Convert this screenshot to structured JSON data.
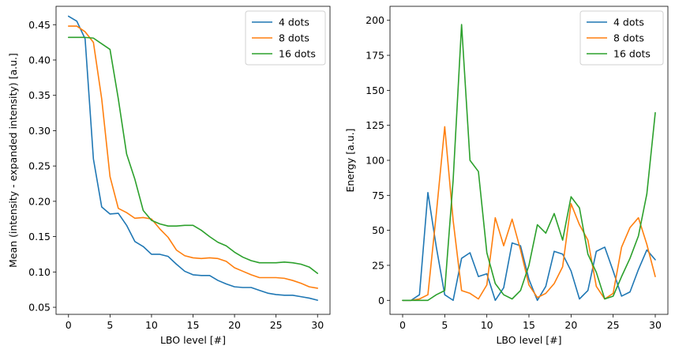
{
  "chart_data": [
    {
      "type": "line",
      "title": "",
      "xlabel": "LBO level [#]",
      "ylabel": "Mean (intensity - expanded intensity) [a.u.]",
      "xlim": [
        -1.5,
        31.5
      ],
      "ylim": [
        0.04,
        0.476
      ],
      "xticks": [
        0,
        5,
        10,
        15,
        20,
        25,
        30
      ],
      "xtick_labels": [
        "0",
        "5",
        "10",
        "15",
        "20",
        "25",
        "30"
      ],
      "yticks": [
        0.05,
        0.1,
        0.15,
        0.2,
        0.25,
        0.3,
        0.35,
        0.4,
        0.45
      ],
      "ytick_labels": [
        "0.05",
        "0.10",
        "0.15",
        "0.20",
        "0.25",
        "0.30",
        "0.35",
        "0.40",
        "0.45"
      ],
      "legend_position": "top-right",
      "x": [
        0,
        1,
        2,
        3,
        4,
        5,
        6,
        7,
        8,
        9,
        10,
        11,
        12,
        13,
        14,
        15,
        16,
        17,
        18,
        19,
        20,
        21,
        22,
        23,
        24,
        25,
        26,
        27,
        28,
        29,
        30
      ],
      "series": [
        {
          "name": "4 dots",
          "color": "#1f77b4",
          "values": [
            0.462,
            0.455,
            0.43,
            0.26,
            0.192,
            0.182,
            0.183,
            0.166,
            0.143,
            0.136,
            0.125,
            0.125,
            0.122,
            0.111,
            0.101,
            0.096,
            0.095,
            0.095,
            0.088,
            0.083,
            0.079,
            0.078,
            0.078,
            0.074,
            0.07,
            0.068,
            0.067,
            0.067,
            0.065,
            0.063,
            0.06
          ]
        },
        {
          "name": "8 dots",
          "color": "#ff7f0e",
          "values": [
            0.448,
            0.448,
            0.44,
            0.425,
            0.345,
            0.235,
            0.19,
            0.184,
            0.176,
            0.177,
            0.175,
            0.161,
            0.149,
            0.131,
            0.123,
            0.12,
            0.119,
            0.12,
            0.119,
            0.115,
            0.106,
            0.101,
            0.096,
            0.092,
            0.092,
            0.092,
            0.091,
            0.088,
            0.084,
            0.079,
            0.077
          ]
        },
        {
          "name": "16 dots",
          "color": "#2ca02c",
          "values": [
            0.432,
            0.432,
            0.432,
            0.431,
            0.423,
            0.415,
            0.345,
            0.267,
            0.231,
            0.187,
            0.173,
            0.168,
            0.165,
            0.165,
            0.166,
            0.166,
            0.159,
            0.15,
            0.142,
            0.137,
            0.128,
            0.121,
            0.116,
            0.113,
            0.113,
            0.113,
            0.114,
            0.113,
            0.111,
            0.107,
            0.098
          ]
        }
      ]
    },
    {
      "type": "line",
      "title": "",
      "xlabel": "LBO level [#]",
      "ylabel": "Energy [a.u.]",
      "xlim": [
        -1.5,
        31.5
      ],
      "ylim": [
        -10,
        210
      ],
      "xticks": [
        0,
        5,
        10,
        15,
        20,
        25,
        30
      ],
      "xtick_labels": [
        "0",
        "5",
        "10",
        "15",
        "20",
        "25",
        "30"
      ],
      "yticks": [
        0,
        25,
        50,
        75,
        100,
        125,
        150,
        175,
        200
      ],
      "ytick_labels": [
        "0",
        "25",
        "50",
        "75",
        "100",
        "125",
        "150",
        "175",
        "200"
      ],
      "legend_position": "top-right",
      "x": [
        0,
        1,
        2,
        3,
        4,
        5,
        6,
        7,
        8,
        9,
        10,
        11,
        12,
        13,
        14,
        15,
        16,
        17,
        18,
        19,
        20,
        21,
        22,
        23,
        24,
        25,
        26,
        27,
        28,
        29,
        30
      ],
      "series": [
        {
          "name": "4 dots",
          "color": "#1f77b4",
          "values": [
            0,
            0,
            4,
            77,
            38,
            4,
            0,
            30,
            34,
            17,
            19,
            0,
            9,
            41,
            39,
            15,
            0,
            10,
            35,
            33,
            21,
            1,
            7,
            35,
            38,
            21,
            3,
            6,
            22,
            36,
            29
          ]
        },
        {
          "name": "8 dots",
          "color": "#ff7f0e",
          "values": [
            0,
            0,
            1,
            4,
            62,
            124,
            57,
            7,
            5,
            1,
            11,
            59,
            39,
            58,
            36,
            11,
            2,
            5,
            12,
            24,
            69,
            54,
            43,
            10,
            1,
            5,
            38,
            52,
            59,
            40,
            17
          ]
        },
        {
          "name": "16 dots",
          "color": "#2ca02c",
          "values": [
            0,
            0,
            0,
            0,
            4,
            7,
            86,
            197,
            100,
            92,
            34,
            12,
            4,
            1,
            7,
            25,
            54,
            48,
            62,
            43,
            74,
            66,
            33,
            20,
            1,
            3,
            17,
            30,
            46,
            76,
            134
          ]
        }
      ]
    }
  ]
}
